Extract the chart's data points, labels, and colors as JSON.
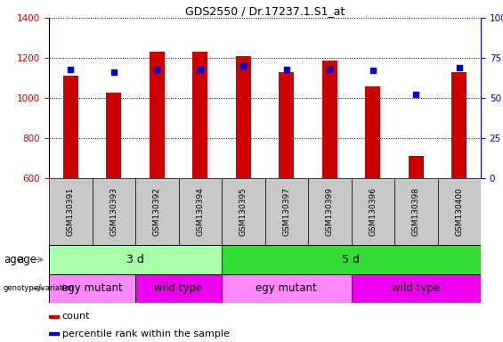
{
  "title": "GDS2550 / Dr.17237.1.S1_at",
  "samples": [
    "GSM130391",
    "GSM130393",
    "GSM130392",
    "GSM130394",
    "GSM130395",
    "GSM130397",
    "GSM130399",
    "GSM130396",
    "GSM130398",
    "GSM130400"
  ],
  "count_values": [
    1110,
    1025,
    1230,
    1230,
    1210,
    1130,
    1185,
    1060,
    710,
    1130
  ],
  "percentile_values": [
    68,
    66,
    68,
    68,
    70,
    68,
    68,
    67,
    52,
    69
  ],
  "ylim_left": [
    600,
    1400
  ],
  "ylim_right": [
    0,
    100
  ],
  "yticks_left": [
    600,
    800,
    1000,
    1200,
    1400
  ],
  "yticks_right": [
    0,
    25,
    50,
    75,
    100
  ],
  "age_groups": [
    {
      "label": "3 d",
      "start": 0,
      "end": 4,
      "color": "#AAFFAA"
    },
    {
      "label": "5 d",
      "start": 4,
      "end": 10,
      "color": "#33DD33"
    }
  ],
  "genotype_groups": [
    {
      "label": "egy mutant",
      "start": 0,
      "end": 2,
      "color": "#FF88FF"
    },
    {
      "label": "wild type",
      "start": 2,
      "end": 4,
      "color": "#EE00EE"
    },
    {
      "label": "egy mutant",
      "start": 4,
      "end": 7,
      "color": "#FF88FF"
    },
    {
      "label": "wild type",
      "start": 7,
      "end": 10,
      "color": "#EE00EE"
    }
  ],
  "bar_color": "#CC0000",
  "dot_color": "#0000CC",
  "bar_width": 0.35,
  "bar_base": 600,
  "left_axis_color": "#CC0000",
  "right_axis_color": "#0000CC",
  "sample_row_color": "#C8C8C8",
  "legend_items": [
    {
      "label": "count",
      "color": "#CC0000"
    },
    {
      "label": "percentile rank within the sample",
      "color": "#0000CC"
    }
  ],
  "label_age": "age",
  "label_genotype": "genotype/variation"
}
